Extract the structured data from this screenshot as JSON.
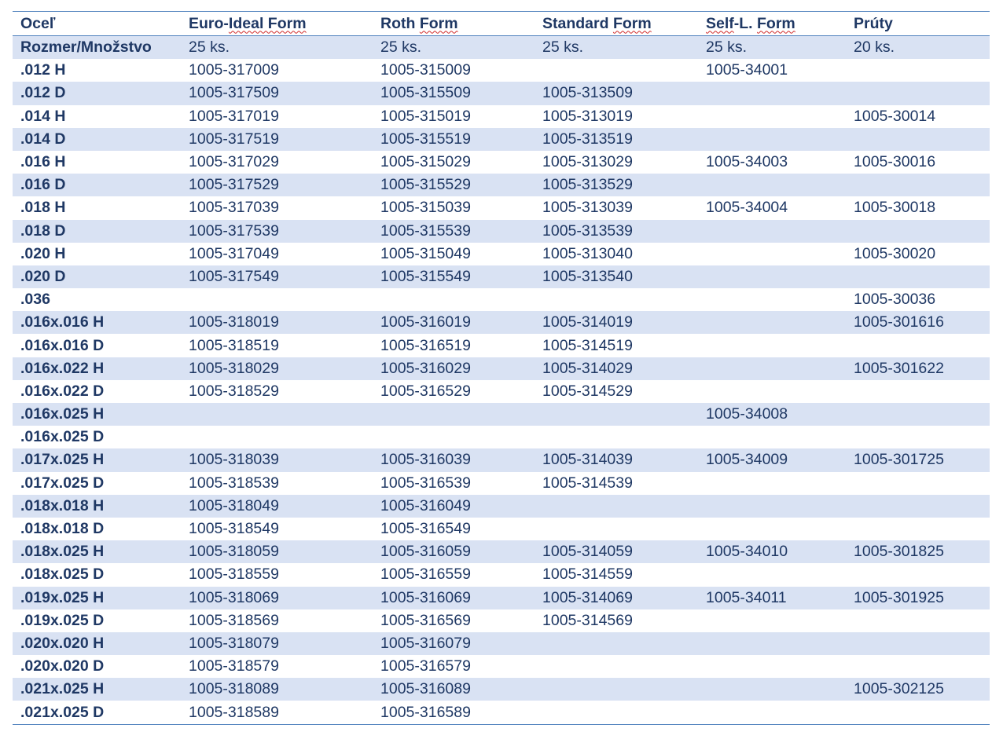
{
  "header": {
    "col0": "Oceľ",
    "col1a": "Euro-",
    "col1b": "Ideal Form",
    "col2a": "Roth ",
    "col2b": "Form",
    "col3a": "Standard ",
    "col3b": "Form",
    "col4a": "Self",
    "col4b": "-L. ",
    "col4c": "Form",
    "col5": "Prúty"
  },
  "rows": [
    [
      "Rozmer/Množstvo",
      "25 ks.",
      "25 ks.",
      "25 ks.",
      "25 ks.",
      "20 ks."
    ],
    [
      ".012 H",
      "1005-317009",
      "1005-315009",
      "",
      "1005-34001",
      ""
    ],
    [
      ".012 D",
      "1005-317509",
      "1005-315509",
      "1005-313509",
      "",
      ""
    ],
    [
      ".014 H",
      "1005-317019",
      "1005-315019",
      "1005-313019",
      "",
      "1005-30014"
    ],
    [
      ".014 D",
      "1005-317519",
      "1005-315519",
      "1005-313519",
      "",
      ""
    ],
    [
      ".016 H",
      "1005-317029",
      "1005-315029",
      "1005-313029",
      "1005-34003",
      "1005-30016"
    ],
    [
      ".016 D",
      "1005-317529",
      "1005-315529",
      "1005-313529",
      "",
      ""
    ],
    [
      ".018 H",
      "1005-317039",
      "1005-315039",
      "1005-313039",
      "1005-34004",
      "1005-30018"
    ],
    [
      ".018 D",
      "1005-317539",
      "1005-315539",
      "1005-313539",
      "",
      ""
    ],
    [
      ".020 H",
      "1005-317049",
      "1005-315049",
      "1005-313040",
      "",
      "1005-30020"
    ],
    [
      ".020 D",
      "1005-317549",
      "1005-315549",
      "1005-313540",
      "",
      ""
    ],
    [
      ".036",
      "",
      "",
      "",
      "",
      "1005-30036"
    ],
    [
      ".016x.016 H",
      "1005-318019",
      "1005-316019",
      "1005-314019",
      "",
      "1005-301616"
    ],
    [
      ".016x.016 D",
      "1005-318519",
      "1005-316519",
      "1005-314519",
      "",
      ""
    ],
    [
      ".016x.022 H",
      "1005-318029",
      "1005-316029",
      "1005-314029",
      "",
      "1005-301622"
    ],
    [
      ".016x.022 D",
      "1005-318529",
      "1005-316529",
      "1005-314529",
      "",
      ""
    ],
    [
      ".016x.025 H",
      "",
      "",
      "",
      "1005-34008",
      ""
    ],
    [
      ".016x.025 D",
      "",
      "",
      "",
      "",
      ""
    ],
    [
      ".017x.025 H",
      "1005-318039",
      "1005-316039",
      "1005-314039",
      "1005-34009",
      "1005-301725"
    ],
    [
      ".017x.025 D",
      "1005-318539",
      "1005-316539",
      "1005-314539",
      "",
      ""
    ],
    [
      ".018x.018 H",
      "1005-318049",
      "1005-316049",
      "",
      "",
      ""
    ],
    [
      ".018x.018 D",
      "1005-318549",
      "1005-316549",
      "",
      "",
      ""
    ],
    [
      ".018x.025 H",
      "1005-318059",
      "1005-316059",
      "1005-314059",
      "1005-34010",
      "1005-301825"
    ],
    [
      ".018x.025 D",
      "1005-318559",
      "1005-316559",
      "1005-314559",
      "",
      ""
    ],
    [
      ".019x.025 H",
      "1005-318069",
      "1005-316069",
      "1005-314069",
      "1005-34011",
      "1005-301925"
    ],
    [
      ".019x.025 D",
      "1005-318569",
      "1005-316569",
      "1005-314569",
      "",
      ""
    ],
    [
      ".020x.020 H",
      "1005-318079",
      "1005-316079",
      "",
      "",
      ""
    ],
    [
      ".020x.020 D",
      "1005-318579",
      "1005-316579",
      "",
      "",
      ""
    ],
    [
      ".021x.025 H",
      "1005-318089",
      "1005-316089",
      "",
      "",
      "1005-302125"
    ],
    [
      ".021x.025 D",
      "1005-318589",
      "1005-316589",
      "",
      "",
      ""
    ]
  ],
  "colors": {
    "text": "#1f3864",
    "stripe": "#d9e2f3",
    "rule": "#4f81bd",
    "spellcheck": "#d02828"
  }
}
